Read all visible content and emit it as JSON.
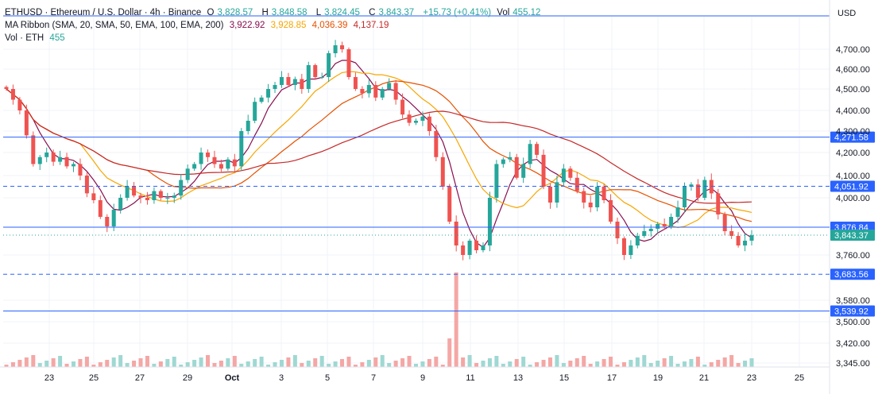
{
  "header": {
    "symbol": "ETHUSD · Ethereum / U.S. Dollar · 4h · Binance",
    "o_label": "O",
    "o_value": "3,828.57",
    "h_label": "H",
    "h_value": "3,848.58",
    "l_label": "L",
    "l_value": "3,824.45",
    "c_label": "C",
    "c_value": "3,843.37",
    "change": "+15.73 (+0.41%)",
    "vol_label": "Vol",
    "vol_value": "455.12"
  },
  "ribbon": {
    "label": "MA Ribbon (SMA, 20, SMA, 50, EMA, 100, EMA, 200)",
    "v1": "3,922.92",
    "v2": "3,928.85",
    "v3": "4,036.39",
    "v4": "4,137.19"
  },
  "volume_legend": {
    "label": "Vol · ETH",
    "value": "455"
  },
  "colors": {
    "up": "#26a69a",
    "down": "#ef5350",
    "sma20": "#880e4f",
    "sma50": "#f7a600",
    "ema100": "#e65100",
    "ema200": "#c62828",
    "hline": "#2962ff"
  },
  "chart_data": {
    "type": "candlestick",
    "currency": "USD",
    "x_ticks": [
      "23",
      "25",
      "27",
      "29",
      "Oct",
      "3",
      "5",
      "7",
      "9",
      "11",
      "13",
      "15",
      "17",
      "19",
      "21",
      "23",
      "25"
    ],
    "y_ticks": [
      "4,700.00",
      "4,600.00",
      "4,500.00",
      "4,400.00",
      "4,300.00",
      "4,200.00",
      "4,100.00",
      "4,000.00",
      "3,760.00",
      "3,580.00",
      "3,500.00",
      "3,420.00",
      "3,345.00"
    ],
    "ylim": [
      3300,
      4780
    ],
    "price_lines": [
      {
        "value": 4271.58,
        "label": "4,271.58",
        "style": "solid"
      },
      {
        "value": 4051.92,
        "label": "4,051.92",
        "style": "dashed"
      },
      {
        "value": 3876.84,
        "label": "3,876.84",
        "style": "solid"
      },
      {
        "value": 3843.37,
        "label": "3,843.37",
        "style": "current"
      },
      {
        "value": 3683.56,
        "label": "3,683.56",
        "style": "dashed"
      },
      {
        "value": 3539.92,
        "label": "3,539.92",
        "style": "solid"
      }
    ],
    "close_path": [
      [
        0,
        4500
      ],
      [
        1,
        4450
      ],
      [
        2,
        4400
      ],
      [
        3,
        4280
      ],
      [
        4,
        4150
      ],
      [
        5,
        4180
      ],
      [
        6,
        4200
      ],
      [
        7,
        4160
      ],
      [
        8,
        4180
      ],
      [
        9,
        4140
      ],
      [
        10,
        4150
      ],
      [
        11,
        4100
      ],
      [
        12,
        4020
      ],
      [
        13,
        3990
      ],
      [
        14,
        3920
      ],
      [
        15,
        3880
      ],
      [
        16,
        3950
      ],
      [
        17,
        4000
      ],
      [
        18,
        4050
      ],
      [
        19,
        4010
      ],
      [
        20,
        4000
      ],
      [
        21,
        3990
      ],
      [
        22,
        4030
      ],
      [
        23,
        4000
      ],
      [
        24,
        4000
      ],
      [
        25,
        4010
      ],
      [
        26,
        4080
      ],
      [
        27,
        4130
      ],
      [
        28,
        4150
      ],
      [
        29,
        4200
      ],
      [
        30,
        4180
      ],
      [
        31,
        4150
      ],
      [
        32,
        4130
      ],
      [
        33,
        4170
      ],
      [
        34,
        4140
      ],
      [
        35,
        4300
      ],
      [
        36,
        4350
      ],
      [
        37,
        4440
      ],
      [
        38,
        4460
      ],
      [
        39,
        4500
      ],
      [
        40,
        4520
      ],
      [
        41,
        4560
      ],
      [
        42,
        4520
      ],
      [
        43,
        4550
      ],
      [
        44,
        4500
      ],
      [
        45,
        4620
      ],
      [
        46,
        4560
      ],
      [
        47,
        4560
      ],
      [
        48,
        4680
      ],
      [
        49,
        4720
      ],
      [
        50,
        4700
      ],
      [
        51,
        4560
      ],
      [
        52,
        4500
      ],
      [
        53,
        4480
      ],
      [
        54,
        4520
      ],
      [
        55,
        4460
      ],
      [
        56,
        4500
      ],
      [
        57,
        4530
      ],
      [
        58,
        4450
      ],
      [
        59,
        4380
      ],
      [
        60,
        4340
      ],
      [
        61,
        4350
      ],
      [
        62,
        4370
      ],
      [
        63,
        4300
      ],
      [
        64,
        4180
      ],
      [
        65,
        4050
      ],
      [
        66,
        3900
      ],
      [
        67,
        3800
      ],
      [
        68,
        3760
      ],
      [
        69,
        3820
      ],
      [
        70,
        3780
      ],
      [
        71,
        3800
      ],
      [
        72,
        4000
      ],
      [
        73,
        4150
      ],
      [
        74,
        4170
      ],
      [
        75,
        4180
      ],
      [
        76,
        4090
      ],
      [
        77,
        4150
      ],
      [
        78,
        4240
      ],
      [
        79,
        4190
      ],
      [
        80,
        4050
      ],
      [
        81,
        3980
      ],
      [
        82,
        4070
      ],
      [
        83,
        4130
      ],
      [
        84,
        4090
      ],
      [
        85,
        4030
      ],
      [
        86,
        3980
      ],
      [
        87,
        3960
      ],
      [
        88,
        4050
      ],
      [
        89,
        3990
      ],
      [
        90,
        3900
      ],
      [
        91,
        3830
      ],
      [
        92,
        3760
      ],
      [
        93,
        3800
      ],
      [
        94,
        3840
      ],
      [
        95,
        3860
      ],
      [
        96,
        3870
      ],
      [
        97,
        3890
      ],
      [
        98,
        3880
      ],
      [
        99,
        3920
      ],
      [
        100,
        3960
      ],
      [
        101,
        4050
      ],
      [
        102,
        4060
      ],
      [
        103,
        4000
      ],
      [
        104,
        4080
      ],
      [
        105,
        4020
      ],
      [
        106,
        3930
      ],
      [
        107,
        3860
      ],
      [
        108,
        3840
      ],
      [
        109,
        3800
      ],
      [
        110,
        3820
      ],
      [
        111,
        3843
      ]
    ],
    "x_day_index": {
      "23": 0,
      "25": 12,
      "27": 24,
      "29": 36,
      "Oct": 48,
      "3": 60,
      "5": 72,
      "7": 84,
      "9": 96,
      "11": 108,
      "13": 120,
      "15": 132,
      "17": 144,
      "19": 156,
      "21": 168,
      "23b": 180,
      "25b": 192
    }
  }
}
